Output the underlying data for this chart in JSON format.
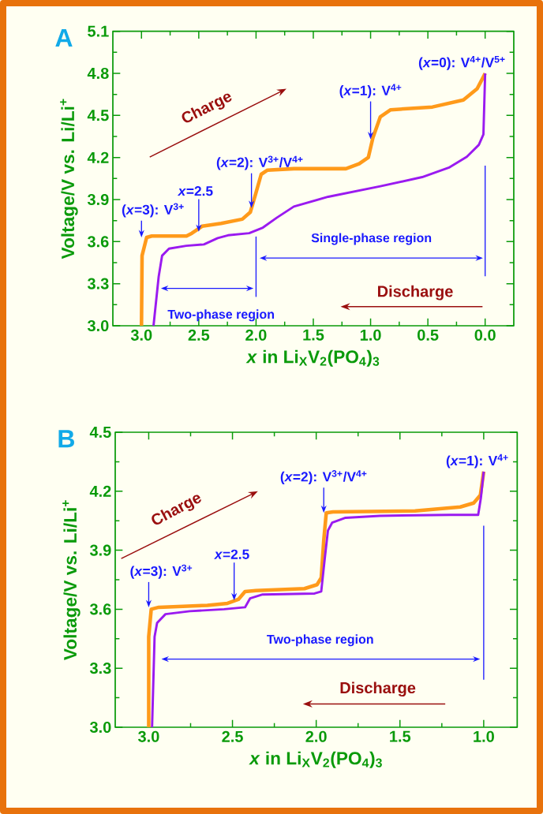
{
  "chart_data": [
    {
      "type": "line",
      "title": "A",
      "xlabel": "*x* in Li$_{X}$V$_{2}$(PO$_{4}$)$_{3}$",
      "ylabel": "Voltage/V vs. Li/Li$^{+}$",
      "xlim": [
        3.25,
        -0.25
      ],
      "ylim": [
        3.0,
        5.1
      ],
      "xticks": [
        {
          "value": 3.0,
          "label": "3.0"
        },
        {
          "value": 2.5,
          "label": "2.5"
        },
        {
          "value": 2.0,
          "label": "2.0"
        },
        {
          "value": 1.5,
          "label": "1.5"
        },
        {
          "value": 1.0,
          "label": "1.0"
        },
        {
          "value": 0.5,
          "label": "0.5"
        },
        {
          "value": 0.0,
          "label": "0.0"
        }
      ],
      "yticks": [
        {
          "value": 3.0,
          "label": "3.0"
        },
        3.3,
        3.6,
        3.9,
        4.2,
        4.5,
        4.8,
        5.1
      ],
      "series": [
        {
          "color": "#ff9a1a",
          "x": [
            3.0,
            2.995,
            2.955,
            2.91,
            2.607,
            2.56,
            2.47,
            2.305,
            2.12,
            2.05,
            2.0,
            1.955,
            1.9,
            1.67,
            1.215,
            1.1,
            1.02,
            0.98,
            0.915,
            0.825,
            0.46,
            0.19,
            0.07,
            0.025,
            0.0
          ],
          "values": [
            3.0,
            3.5,
            3.63,
            3.64,
            3.64,
            3.66,
            3.71,
            3.73,
            3.76,
            3.81,
            3.95,
            4.08,
            4.11,
            4.12,
            4.12,
            4.155,
            4.2,
            4.34,
            4.49,
            4.54,
            4.56,
            4.61,
            4.69,
            4.76,
            4.8
          ]
        },
        {
          "color": "#9a1af0",
          "x": [
            0.0,
            0.015,
            0.055,
            0.16,
            0.31,
            0.55,
            0.915,
            1.37,
            1.67,
            1.82,
            1.94,
            2.06,
            2.245,
            2.335,
            2.455,
            2.61,
            2.76,
            2.82,
            2.85,
            2.895
          ],
          "values": [
            4.8,
            4.365,
            4.29,
            4.205,
            4.13,
            4.06,
            3.995,
            3.92,
            3.85,
            3.77,
            3.7,
            3.66,
            3.645,
            3.625,
            3.58,
            3.57,
            3.55,
            3.5,
            3.35,
            3.0
          ]
        }
      ],
      "annotations": [
        {
          "text": "(*x*=3): V$^{3+}$",
          "x": 3.0,
          "y": 3.63
        },
        {
          "text": "*x*=2.5",
          "x": 2.5,
          "y": 3.67
        },
        {
          "text": "(*x*=2): V$^{3+}$/V$^{4+}$",
          "x": 2.04,
          "y": 3.84
        },
        {
          "text": "(*x*=1): V$^{4+}$",
          "x": 1.0,
          "y": 4.33
        },
        {
          "text": "(*x*=0): V$^{4+}$/V$^{5+}$",
          "x": 0.0,
          "y": 4.8
        },
        "Charge",
        "Discharge",
        "Single-phase region",
        "Two-phase region"
      ],
      "ref_lines": [
        {
          "axis": "x",
          "value": 2.0,
          "color": "#1a1aff"
        },
        {
          "axis": "x",
          "value": 0.0,
          "color": "#1a1aff"
        }
      ]
    },
    {
      "type": "line",
      "title": "B",
      "xlabel": "*x* in Li$_{X}$V$_{2}$(PO$_{4}$)$_{3}$",
      "ylabel": "Voltage/V vs. Li/Li$^{+}$",
      "xlim": [
        3.2,
        0.8
      ],
      "ylim": [
        3.0,
        4.5
      ],
      "xticks": [
        {
          "value": 3.0,
          "label": "3.0"
        },
        {
          "value": 2.5,
          "label": "2.5"
        },
        {
          "value": 2.0,
          "label": "2.0"
        },
        {
          "value": 1.5,
          "label": "1.5"
        },
        {
          "value": 1.0,
          "label": "1.0"
        }
      ],
      "yticks": [
        {
          "value": 3.0,
          "label": "3.0"
        },
        3.3,
        3.6,
        3.9,
        4.2,
        4.5
      ],
      "series": [
        {
          "color": "#ff9a1a",
          "x": [
            3.0,
            3.0,
            2.985,
            2.94,
            2.65,
            2.53,
            2.465,
            2.425,
            2.36,
            2.07,
            1.995,
            1.97,
            1.955,
            1.94,
            1.9,
            1.41,
            1.14,
            1.06,
            1.02,
            1.0
          ],
          "values": [
            3.0,
            3.46,
            3.6,
            3.61,
            3.62,
            3.63,
            3.65,
            3.69,
            3.695,
            3.705,
            3.725,
            3.76,
            3.95,
            4.09,
            4.095,
            4.1,
            4.12,
            4.14,
            4.18,
            4.3
          ]
        },
        {
          "color": "#9a1af0",
          "x": [
            1.0,
            1.017,
            1.033,
            1.2,
            1.62,
            1.825,
            1.905,
            1.93,
            1.95,
            1.97,
            2.01,
            2.32,
            2.395,
            2.425,
            2.55,
            2.755,
            2.9,
            2.95,
            2.965,
            2.98
          ],
          "values": [
            4.3,
            4.165,
            4.08,
            4.08,
            4.075,
            4.065,
            4.04,
            4.0,
            3.85,
            3.69,
            3.68,
            3.675,
            3.655,
            3.61,
            3.6,
            3.59,
            3.575,
            3.53,
            3.46,
            3.0
          ]
        }
      ],
      "annotations": [
        {
          "text": "(*x*=3): V$^{3+}$",
          "x": 3.0,
          "y": 3.61
        },
        {
          "text": "*x*=2.5",
          "x": 2.49,
          "y": 3.645
        },
        {
          "text": "(*x*=2): V$^{3+}$/V$^{4+}$",
          "x": 1.955,
          "y": 4.09
        },
        {
          "text": "(*x*=1): V$^{4+}$",
          "x": 1.0,
          "y": 4.3
        },
        "Charge",
        "Discharge",
        "Two-phase region"
      ],
      "ref_lines": [
        {
          "axis": "x",
          "value": 1.0,
          "color": "#1a1aff"
        }
      ]
    }
  ]
}
